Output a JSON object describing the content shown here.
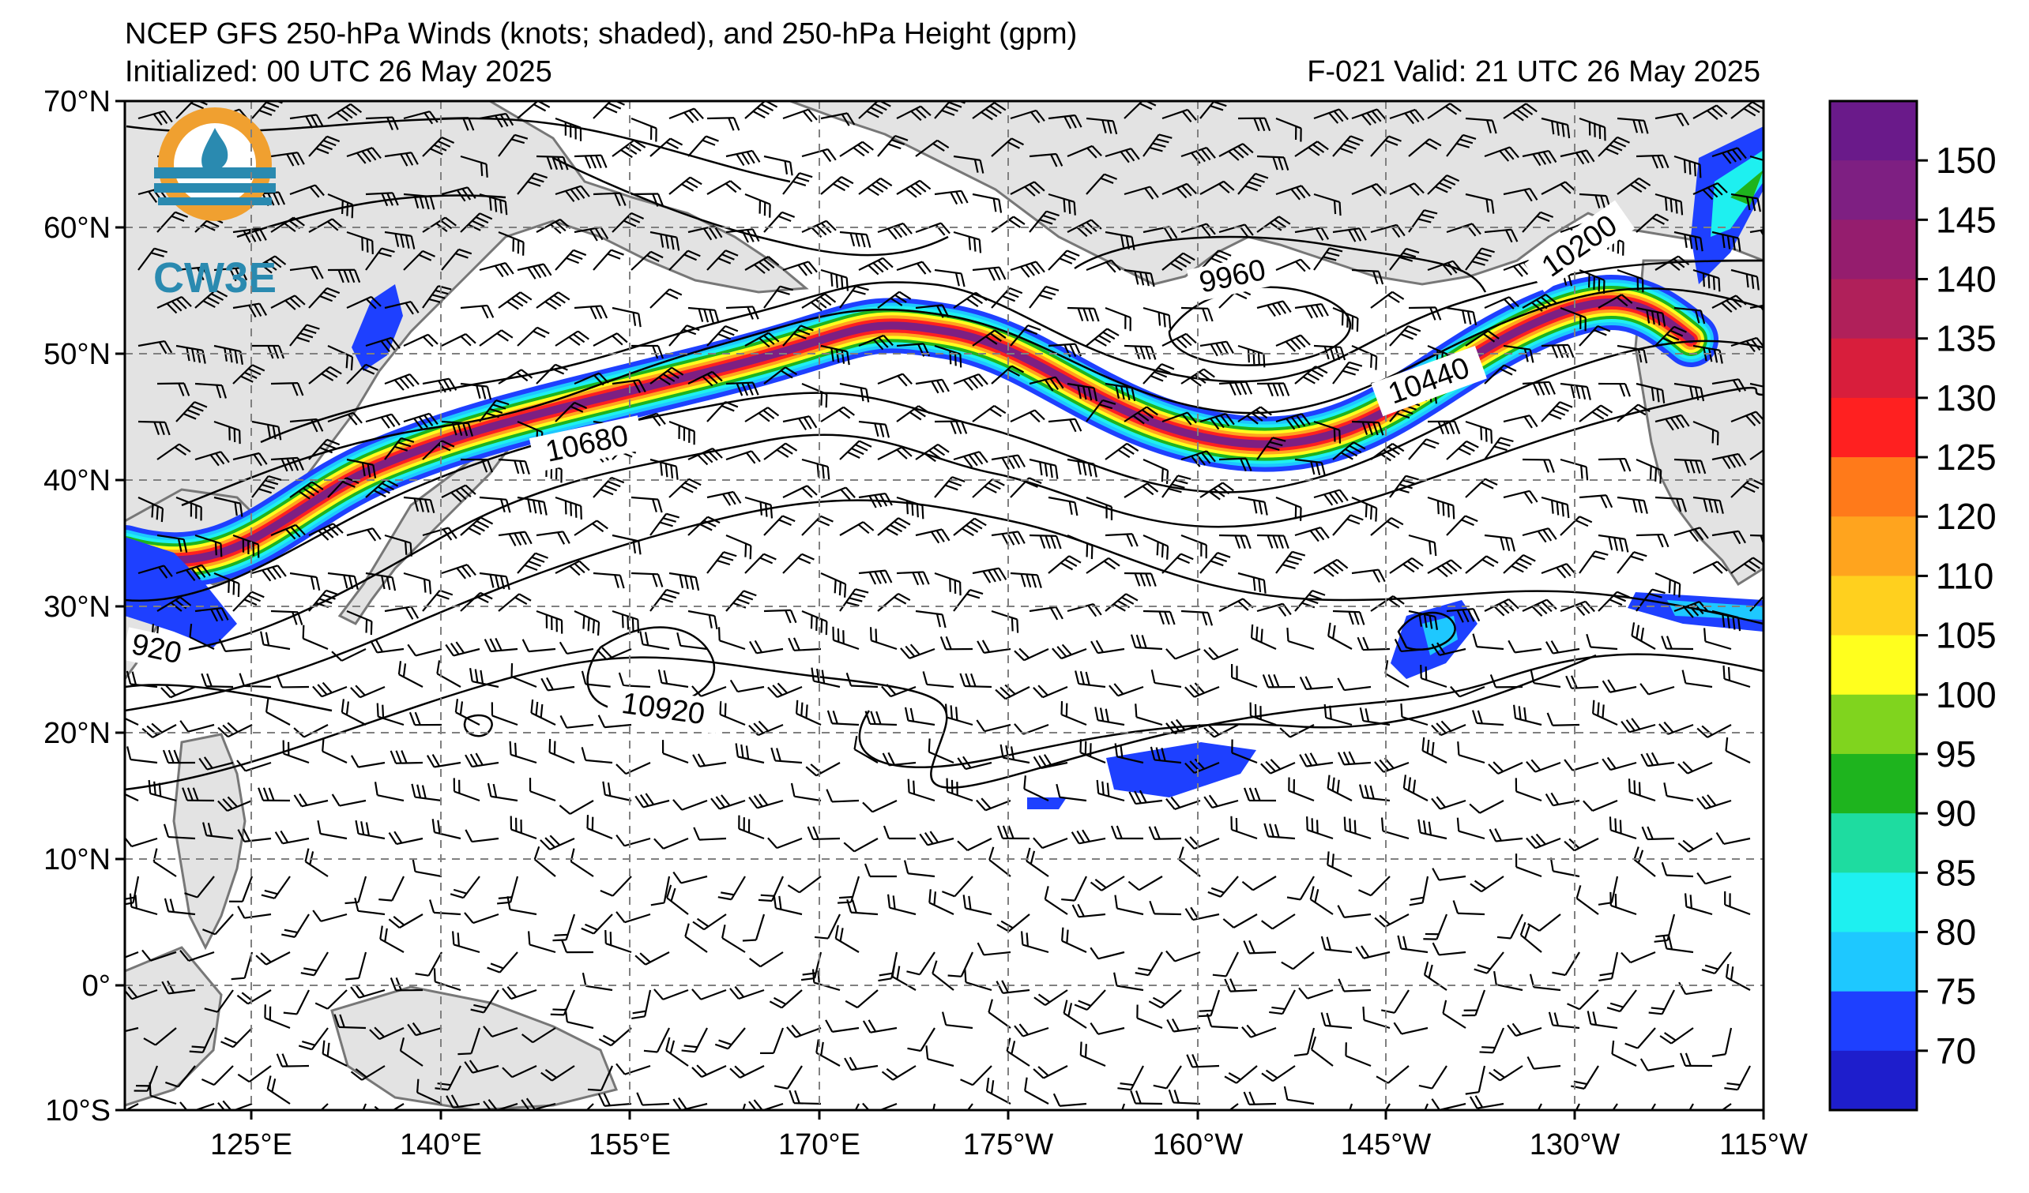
{
  "header": {
    "title": "NCEP GFS 250-hPa Winds (knots; shaded), and 250-hPa Height (gpm)",
    "initialized": "Initialized: 00 UTC 26 May 2025",
    "valid": "F-021  Valid: 21 UTC 26 May 2025"
  },
  "logo": {
    "text": "CW3E",
    "colors": {
      "ring": "#f0a030",
      "drop": "#2a8ab0",
      "text": "#2a8ab0"
    }
  },
  "axes": {
    "lat_labels": [
      "70°N",
      "60°N",
      "50°N",
      "40°N",
      "30°N",
      "20°N",
      "10°N",
      "0°",
      "10°S"
    ],
    "lon_labels": [
      "125°E",
      "140°E",
      "155°E",
      "170°E",
      "175°W",
      "160°W",
      "145°W",
      "130°W",
      "115°W"
    ]
  },
  "contour_labels": [
    "10680",
    "10440",
    "10200",
    "9960",
    "10920",
    "920"
  ],
  "colorbar": {
    "ticks": [
      "150",
      "145",
      "140",
      "135",
      "130",
      "125",
      "120",
      "110",
      "105",
      "100",
      "95",
      "90",
      "85",
      "80",
      "75",
      "70"
    ],
    "colors": [
      "#6a1a8a",
      "#7e1f82",
      "#951d6e",
      "#b0205a",
      "#d81e3c",
      "#ff2020",
      "#ff7a1a",
      "#ffa41e",
      "#ffd01e",
      "#ffff1e",
      "#80d41e",
      "#1eb41e",
      "#1edca0",
      "#1ef0f0",
      "#1ec8ff",
      "#1e40ff",
      "#1e1ecc"
    ]
  },
  "jet_colors": {
    "outer": "#1e40ff",
    "mid1": "#1ec8ff",
    "mid2": "#1ef0f0",
    "mid3": "#1eb41e",
    "mid4": "#ffff1e",
    "mid5": "#ffa41e",
    "mid6": "#ff2020",
    "core": "#7e1f82"
  },
  "land_color": "#e3e3e3",
  "coast_color": "#777777"
}
